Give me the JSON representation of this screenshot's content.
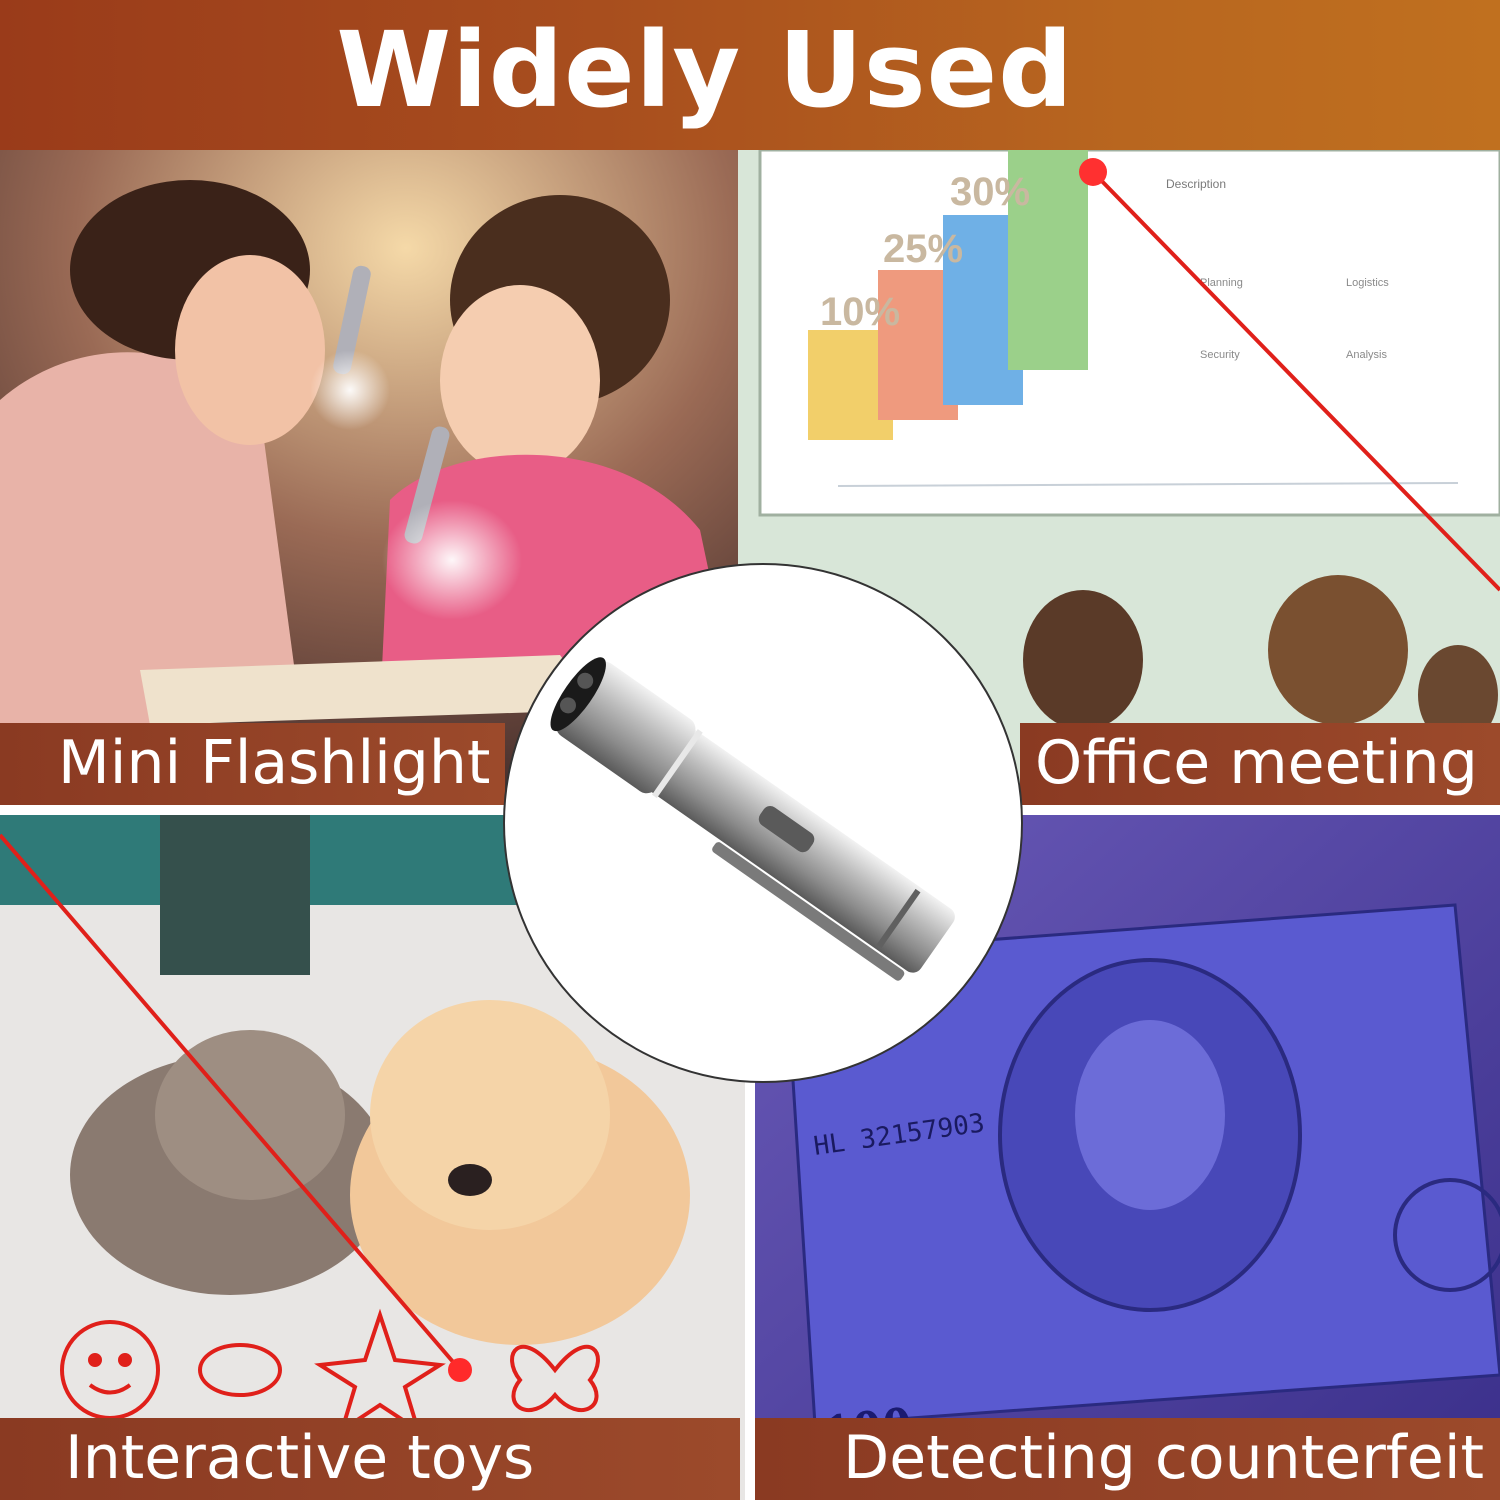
{
  "banner": {
    "title": "Widely Used"
  },
  "panels": {
    "flashlight": {
      "caption": "Mini Flashlight"
    },
    "office": {
      "caption": "Office meeting",
      "bar_labels": [
        "10%",
        "25%",
        "30%"
      ],
      "slide_heading": "Description",
      "slide_items": [
        "Planning",
        "Logistics",
        "Security",
        "Analysis"
      ]
    },
    "toys": {
      "caption": "Interactive toys"
    },
    "counterfeit": {
      "caption": "Detecting counterfeit",
      "bill_serial": "HL 32157903",
      "bill_denomination": "100"
    }
  },
  "colors": {
    "banner": "#a84e1e",
    "caption_bar": "#8f3f25",
    "laser": "#e0201a",
    "uv_tint": "#4a3fb0"
  }
}
